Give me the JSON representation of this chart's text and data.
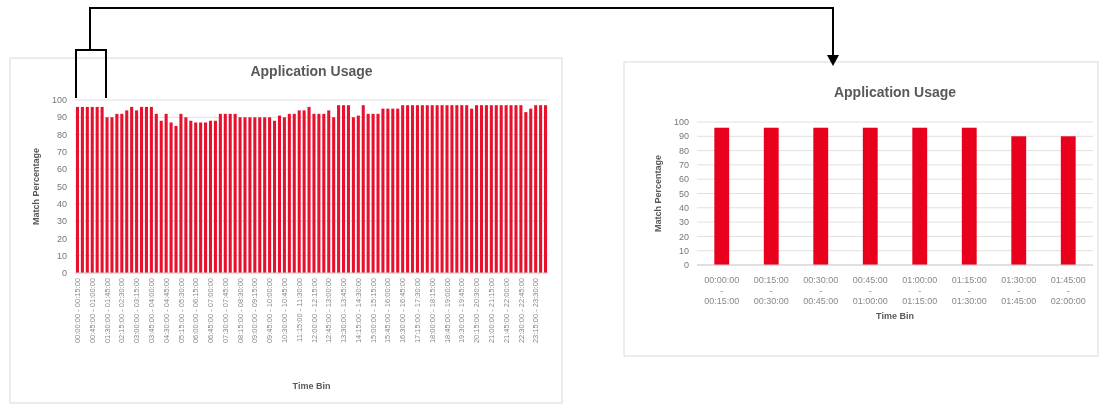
{
  "chart_data": [
    {
      "type": "bar",
      "title": "Application Usage",
      "xlabel": "Time Bin",
      "ylabel": "Match Percentage",
      "categories": [
        "00:00:00 - 00:15:00",
        null,
        null,
        "00:45:00 - 01:00:00",
        null,
        null,
        "01:30:00 - 01:45:00",
        null,
        null,
        "02:15:00 - 02:30:00",
        null,
        null,
        "03:00:00 - 03:15:00",
        null,
        null,
        "03:45:00 - 04:00:00",
        null,
        null,
        "04:30:00 - 04:45:00",
        null,
        null,
        "05:15:00 - 05:30:00",
        null,
        null,
        "06:00:00 - 06:15:00",
        null,
        null,
        "06:45:00 - 07:00:00",
        null,
        null,
        "07:30:00 - 07:45:00",
        null,
        null,
        "08:15:00 - 08:30:00",
        null,
        null,
        "09:00:00 - 09:15:00",
        null,
        null,
        "09:45:00 - 10:00:00",
        null,
        null,
        "10:30:00 - 10:45:00",
        null,
        null,
        "11:15:00 - 11:30:00",
        null,
        null,
        "12:00:00 - 12:15:00",
        null,
        null,
        "12:45:00 - 13:00:00",
        null,
        null,
        "13:30:00 - 13:45:00",
        null,
        null,
        "14:15:00 - 14:30:00",
        null,
        null,
        "15:00:00 - 15:15:00",
        null,
        null,
        "15:45:00 - 16:00:00",
        null,
        null,
        "16:30:00 - 16:45:00",
        null,
        null,
        "17:15:00 - 17:30:00",
        null,
        null,
        "18:00:00 - 18:15:00",
        null,
        null,
        "18:45:00 - 19:00:00",
        null,
        null,
        "19:30:00 - 19:45:00",
        null,
        null,
        "20:15:00 - 20:30:00",
        null,
        null,
        "21:00:00 - 21:15:00",
        null,
        null,
        "21:45:00 - 22:00:00",
        null,
        null,
        "22:30:00 - 22:45:00",
        null,
        null,
        "23:15:00 - 23:30:00",
        null,
        null
      ],
      "values": [
        96,
        96,
        96,
        96,
        96,
        96,
        90,
        90,
        92,
        92,
        94,
        96,
        94,
        96,
        96,
        96,
        92,
        88,
        92,
        87,
        85,
        92,
        90,
        88,
        87,
        87,
        87,
        88,
        88,
        92,
        92,
        92,
        92,
        90,
        90,
        90,
        90,
        90,
        90,
        90,
        88,
        91,
        90,
        92,
        92,
        94,
        94,
        96,
        92,
        92,
        92,
        94,
        90,
        97,
        97,
        97,
        90,
        91,
        97,
        92,
        92,
        92,
        95,
        95,
        95,
        95,
        97,
        97,
        97,
        97,
        97,
        97,
        97,
        97,
        97,
        97,
        97,
        97,
        97,
        97,
        95,
        97,
        97,
        97,
        97,
        97,
        97,
        97,
        97,
        97,
        97,
        93,
        95,
        97,
        97,
        97
      ],
      "color": "#e8102c",
      "ylim": [
        0,
        100
      ],
      "yticks": [
        0,
        10,
        20,
        30,
        40,
        50,
        60,
        70,
        80,
        90,
        100
      ],
      "grid": "y"
    },
    {
      "type": "bar",
      "title": "Application Usage",
      "xlabel": "Time Bin",
      "ylabel": "Match Percentage",
      "categories": [
        "00:00:00 - 00:15:00",
        "00:15:00 - 00:30:00",
        "00:30:00 - 00:45:00",
        "00:45:00 - 01:00:00",
        "01:00:00 - 01:15:00",
        "01:15:00 - 01:30:00",
        "01:30:00 - 01:45:00",
        "01:45:00 - 02:00:00"
      ],
      "values": [
        96,
        96,
        96,
        96,
        96,
        96,
        90,
        90
      ],
      "color": "#e8001c",
      "ylim": [
        0,
        100
      ],
      "yticks": [
        0,
        10,
        20,
        30,
        40,
        50,
        60,
        70,
        80,
        90,
        100
      ],
      "grid": "y"
    }
  ]
}
